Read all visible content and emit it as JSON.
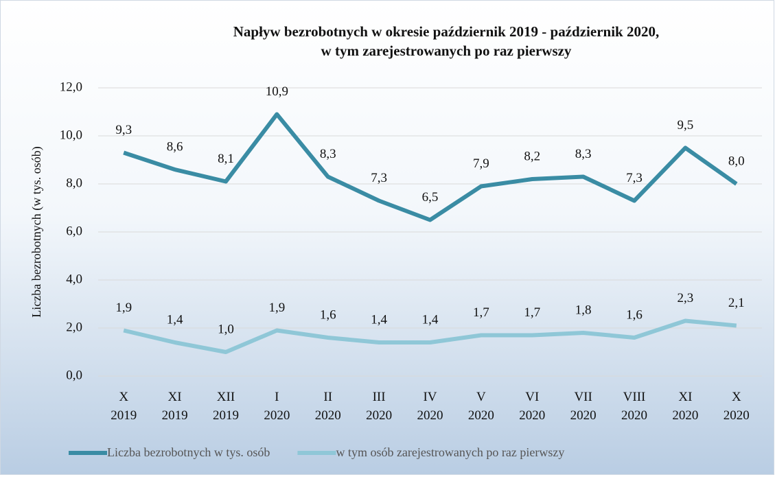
{
  "chart_data": {
    "type": "line",
    "title": "Napływ  bezrobotnych w okresie październik 2019 - październik 2020,\nw tym zarejestrowanych po raz pierwszy",
    "y_axis_label": "Liczba bezrobotnych (w tys. osób)",
    "categories": [
      "X\n2019",
      "XI\n2019",
      "XII\n2019",
      "I\n2020",
      "II\n2020",
      "III\n2020",
      "IV\n2020",
      "V\n2020",
      "VI\n2020",
      "VII\n2020",
      "VIII\n2020",
      "XI\n2020",
      "X\n2020"
    ],
    "series": [
      {
        "name": "Liczba bezrobotnych w tys. osób",
        "color": "#3a8ca4",
        "values": [
          9.3,
          8.6,
          8.1,
          10.9,
          8.3,
          7.3,
          6.5,
          7.9,
          8.2,
          8.3,
          7.3,
          9.5,
          8.0
        ],
        "value_labels": [
          "9,3",
          "8,6",
          "8,1",
          "10,9",
          "8,3",
          "7,3",
          "6,5",
          "7,9",
          "8,2",
          "8,3",
          "7,3",
          "9,5",
          "8,0"
        ]
      },
      {
        "name": "w tym osób zarejestrowanych po raz pierwszy",
        "color": "#8fc7d7",
        "values": [
          1.9,
          1.4,
          1.0,
          1.9,
          1.6,
          1.4,
          1.4,
          1.7,
          1.7,
          1.8,
          1.6,
          2.3,
          2.1
        ],
        "value_labels": [
          "1,9",
          "1,4",
          "1,0",
          "1,9",
          "1,6",
          "1,4",
          "1,4",
          "1,7",
          "1,7",
          "1,8",
          "1,6",
          "2,3",
          "2,1"
        ]
      }
    ],
    "ylim": [
      0,
      12
    ],
    "yticks": [
      {
        "value": 0,
        "label": "0,0"
      },
      {
        "value": 2,
        "label": "2,0"
      },
      {
        "value": 4,
        "label": "4,0"
      },
      {
        "value": 6,
        "label": "6,0"
      },
      {
        "value": 8,
        "label": "8,0"
      },
      {
        "value": 10,
        "label": "10,0"
      },
      {
        "value": 12,
        "label": "12,0"
      }
    ],
    "grid": true,
    "legend": "bottom"
  }
}
